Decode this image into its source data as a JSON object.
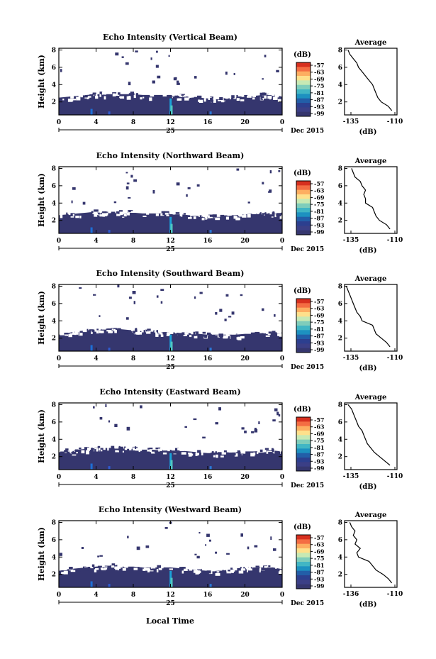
{
  "figure": {
    "x_axis_label": "Local Time",
    "date_day": "25",
    "date_month_year": "Dec 2015",
    "colorbar_unit": "(dB)",
    "colorbar_ticks": [
      "-57",
      "-63",
      "-69",
      "-75",
      "-81",
      "-87",
      "-93",
      "-99"
    ],
    "colorbar_colors": [
      "#d7301f",
      "#f46d43",
      "#fdae61",
      "#fee08b",
      "#c7e9b4",
      "#7fcdbb",
      "#41b6c4",
      "#1d91c0",
      "#225ea8",
      "#2c3f8f",
      "#3b3f86",
      "#35366e"
    ],
    "side_title": "Average",
    "side_xlabel": "(dB)"
  },
  "chart_data": [
    {
      "type": "heatmap",
      "title": "Echo Intensity (Vertical Beam)",
      "ylabel": "Height (km)",
      "x_ticks": [
        "0",
        "4",
        "8",
        "12",
        "16",
        "20",
        "0"
      ],
      "y_ticks": [
        "2",
        "4",
        "6",
        "8"
      ],
      "xlim": [
        0,
        24
      ],
      "ylim": [
        0.5,
        8.2
      ],
      "layer_top_km": [
        2.5,
        2.6,
        2.7,
        2.8,
        2.9,
        2.9,
        2.9,
        2.9,
        2.9,
        2.8,
        2.8,
        2.8,
        2.8,
        2.7,
        2.6,
        2.5,
        2.4,
        2.3,
        2.4,
        2.5,
        2.6,
        2.7,
        2.8,
        2.9,
        2.6
      ],
      "profile": {
        "heights_km": [
          1,
          1.5,
          2,
          2.5,
          3,
          3.5,
          4,
          4.5,
          5,
          5.5,
          6,
          6.5,
          7,
          7.5,
          8
        ],
        "values_db": [
          -111,
          -113,
          -117,
          -119,
          -120,
          -121,
          -122,
          -124,
          -126,
          -128,
          -130,
          -131,
          -133,
          -135,
          -136
        ],
        "xlim": [
          -138,
          -108
        ],
        "x_ticks": [
          "-135",
          "-110"
        ],
        "y_ticks": [
          "2",
          "4",
          "6",
          "8"
        ]
      }
    },
    {
      "type": "heatmap",
      "title": "Echo Intensity (Northward Beam)",
      "ylabel": "Height (km)",
      "x_ticks": [
        "0",
        "4",
        "8",
        "12",
        "16",
        "20",
        "0"
      ],
      "y_ticks": [
        "2",
        "4",
        "6",
        "8"
      ],
      "xlim": [
        0,
        24
      ],
      "ylim": [
        0.5,
        8.2
      ],
      "layer_top_km": [
        2.6,
        2.7,
        2.8,
        2.9,
        3.0,
        3.0,
        3.0,
        2.9,
        2.9,
        2.8,
        2.8,
        2.8,
        2.7,
        2.7,
        2.6,
        2.5,
        2.4,
        2.4,
        2.5,
        2.6,
        2.7,
        2.8,
        2.8,
        2.9,
        2.7
      ],
      "profile": {
        "heights_km": [
          1,
          1.5,
          2,
          2.5,
          3,
          3.5,
          4,
          4.5,
          5,
          5.5,
          6,
          6.5,
          7,
          7.5,
          8
        ],
        "values_db": [
          -112,
          -114,
          -118,
          -120,
          -121,
          -122,
          -126,
          -126,
          -127,
          -126,
          -128,
          -129,
          -132,
          -133,
          -134
        ],
        "xlim": [
          -138,
          -108
        ],
        "x_ticks": [
          "-135",
          "-110"
        ],
        "y_ticks": [
          "2",
          "4",
          "6",
          "8"
        ]
      }
    },
    {
      "type": "heatmap",
      "title": "Echo Intensity (Southward Beam)",
      "ylabel": "Height (km)",
      "x_ticks": [
        "0",
        "4",
        "8",
        "12",
        "16",
        "20",
        "0"
      ],
      "y_ticks": [
        "2",
        "4",
        "6",
        "8"
      ],
      "xlim": [
        0,
        24
      ],
      "ylim": [
        0.5,
        8.2
      ],
      "layer_top_km": [
        2.4,
        2.6,
        2.8,
        2.9,
        3.0,
        3.1,
        3.1,
        3.0,
        2.9,
        2.8,
        2.8,
        2.7,
        2.7,
        2.6,
        2.6,
        2.5,
        2.4,
        2.4,
        2.4,
        2.4,
        2.5,
        2.5,
        2.6,
        2.6,
        2.5
      ],
      "profile": {
        "heights_km": [
          1,
          1.5,
          2,
          2.5,
          3,
          3.5,
          4,
          4.5,
          5,
          5.5,
          6,
          6.5,
          7,
          7.5,
          8
        ],
        "values_db": [
          -112,
          -114,
          -117,
          -120,
          -121,
          -122,
          -128,
          -129,
          -131,
          -132,
          -133,
          -134,
          -135,
          -136,
          -137
        ],
        "xlim": [
          -138,
          -108
        ],
        "x_ticks": [
          "-135",
          "-110"
        ],
        "y_ticks": [
          "2",
          "4",
          "6",
          "8"
        ]
      }
    },
    {
      "type": "heatmap",
      "title": "Echo Intensity (Eastward Beam)",
      "ylabel": "Height (km)",
      "x_ticks": [
        "0",
        "4",
        "8",
        "12",
        "16",
        "20",
        "0"
      ],
      "y_ticks": [
        "2",
        "4",
        "6",
        "8"
      ],
      "xlim": [
        0,
        24
      ],
      "ylim": [
        0.5,
        8.2
      ],
      "layer_top_km": [
        2.5,
        2.7,
        2.8,
        2.9,
        3.0,
        3.0,
        3.0,
        2.9,
        2.9,
        2.8,
        2.8,
        2.7,
        2.7,
        2.7,
        2.6,
        2.5,
        2.4,
        2.4,
        2.5,
        2.5,
        2.6,
        2.6,
        2.7,
        2.7,
        2.6
      ],
      "profile": {
        "heights_km": [
          1,
          1.5,
          2,
          2.5,
          3,
          3.5,
          4,
          4.5,
          5,
          5.5,
          6,
          6.5,
          7,
          7.5,
          8
        ],
        "values_db": [
          -112,
          -115,
          -118,
          -121,
          -123,
          -125,
          -126,
          -127,
          -128,
          -130,
          -131,
          -132,
          -133,
          -134,
          -136
        ],
        "xlim": [
          -138,
          -108
        ],
        "x_ticks": [
          "-135",
          "-110"
        ],
        "y_ticks": [
          "2",
          "4",
          "6",
          "8"
        ]
      }
    },
    {
      "type": "heatmap",
      "title": "Echo Intensity (Westward Beam)",
      "ylabel": "Height (km)",
      "x_ticks": [
        "0",
        "4",
        "8",
        "12",
        "16",
        "20",
        "0"
      ],
      "y_ticks": [
        "2",
        "4",
        "6",
        "8"
      ],
      "xlim": [
        0,
        24
      ],
      "ylim": [
        0.5,
        8.2
      ],
      "layer_top_km": [
        2.4,
        2.6,
        2.7,
        2.8,
        2.9,
        3.0,
        3.0,
        2.9,
        2.9,
        2.8,
        2.8,
        2.8,
        2.8,
        2.7,
        2.6,
        2.5,
        2.4,
        2.4,
        2.5,
        2.6,
        2.7,
        2.8,
        2.8,
        2.8,
        2.6
      ],
      "profile": {
        "heights_km": [
          1,
          1.5,
          2,
          2.5,
          3,
          3.5,
          4,
          4.5,
          5,
          5.5,
          6,
          6.5,
          7,
          7.5,
          8
        ],
        "values_db": [
          -111,
          -113,
          -116,
          -120,
          -122,
          -124,
          -130,
          -131,
          -129,
          -132,
          -131,
          -133,
          -132,
          -134,
          -135
        ],
        "xlim": [
          -138,
          -108
        ],
        "x_ticks": [
          "-136",
          "-110"
        ],
        "y_ticks": [
          "2",
          "4",
          "6",
          "8"
        ]
      }
    }
  ]
}
